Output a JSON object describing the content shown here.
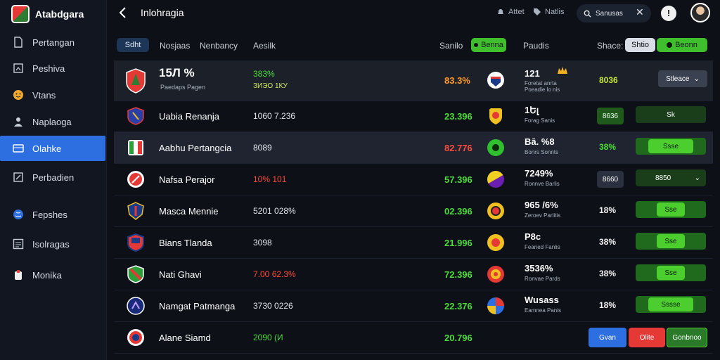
{
  "app": {
    "name": "Atabdgara"
  },
  "sidebar": {
    "items": [
      {
        "label": "Pertangan",
        "icon": "doc-icon"
      },
      {
        "label": "Peshiva",
        "icon": "frame-icon"
      },
      {
        "label": "Vtans",
        "icon": "face-icon"
      },
      {
        "label": "Naplaoga",
        "icon": "group-icon"
      },
      {
        "label": "Olahke",
        "icon": "card-icon"
      },
      {
        "label": "Perbadien",
        "icon": "edit-icon"
      },
      {
        "label": "Fepshes",
        "icon": "globe-icon"
      },
      {
        "label": "Isolragas",
        "icon": "list-icon"
      },
      {
        "label": "Monika",
        "icon": "bag-icon"
      }
    ]
  },
  "header": {
    "title": "Inlohragia",
    "link1": "Attet",
    "link2": "Natlis",
    "search_value": "Sanusas"
  },
  "toolbar": {
    "chip1": "Sdht",
    "tab1": "Nosjaas",
    "tab2": "Nenbancy",
    "tab3": "Aesilk",
    "label1": "Sanilo",
    "chip2": "Benna",
    "label2": "Paudis",
    "label3": "Shace:",
    "chip3": "Shtio",
    "chip4": "Beonn"
  },
  "colors": {
    "accent": "#2d6fe0",
    "green": "#4cdb3a",
    "red": "#ff4a3a"
  },
  "rows": [
    {
      "team": "15Л %",
      "team_sub": "Paedaps Pagen",
      "stat": "383%",
      "stat2": "ЗИЭО 1КУ",
      "pct": "83.3%",
      "oteam": "121",
      "osub1": "Foretat anrta",
      "osub2": "Poeadie lo nis",
      "rpct": "8036",
      "select": "Stleace"
    },
    {
      "team": "Uabia Renanja",
      "stat": "1060 7.236",
      "pct": "23.396",
      "oteam": "1Ել",
      "osub": "Forag Sanis",
      "rpct": "8636",
      "btn": "Sk"
    },
    {
      "team": "Aabhu Pertangcia",
      "stat": "8089",
      "pct": "82.776",
      "oteam": "Bā. %8",
      "osub": "Bonrs Sonnts",
      "rpct": "38%",
      "btn": "Ssse"
    },
    {
      "team": "Nafsa Perajor",
      "stat": "10% 101",
      "pct": "57.396",
      "oteam": "7249%",
      "osub": "Ronnve Barlis",
      "rpct": "8660",
      "select": "8850"
    },
    {
      "team": "Masca Mennie",
      "stat": "5201 028%",
      "pct": "02.396",
      "oteam": "965 /6%",
      "osub": "Zeroev Parlitis",
      "rpct": "18%",
      "btn": "Sse"
    },
    {
      "team": "Bians Tlanda",
      "stat": "3098",
      "pct": "21.996",
      "oteam": "P8c",
      "osub": "Feaned Fanlis",
      "rpct": "38%",
      "btn": "Sse"
    },
    {
      "team": "Nati Ghavi",
      "stat": "7.00 62.3%",
      "pct": "72.396",
      "oteam": "3536%",
      "osub": "Ronvae Pards",
      "rpct": "38%",
      "btn": "Sse"
    },
    {
      "team": "Namgat Patmanga",
      "stat": "3730 0226",
      "pct": "22.376",
      "oteam": "Wusass",
      "osub": "Eamnea Panis",
      "rpct": "18%",
      "btn": "Sssse"
    },
    {
      "team": "Alane Siamd",
      "stat": "2090 (И",
      "pct": "20.796"
    }
  ],
  "footer_buttons": {
    "blue": "Gvan",
    "red": "Olite",
    "green": "Gonbnoo"
  }
}
